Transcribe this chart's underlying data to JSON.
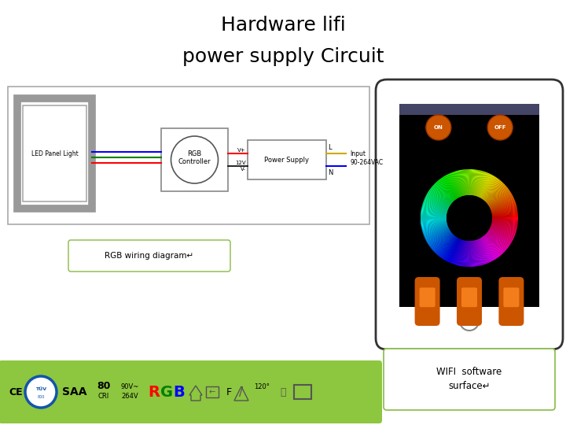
{
  "title_line1": "Hardware lifi",
  "title_line2": "power supply Circuit",
  "title_fontsize": 18,
  "bg_color": "#ffffff",
  "green_bar_color": "#8dc63f",
  "wifi_caption": "WIFI  software\nsurface↵",
  "rgb_caption": "RGB wiring diagram↵"
}
